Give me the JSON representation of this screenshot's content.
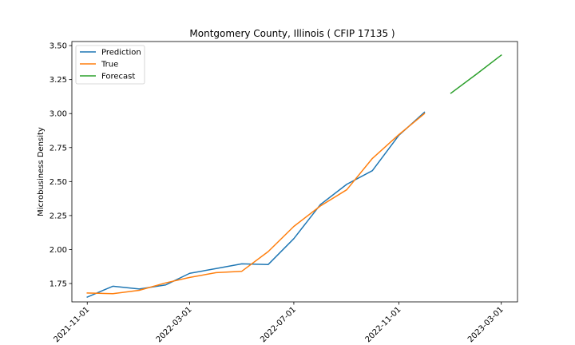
{
  "chart_data": {
    "type": "line",
    "title": "Montgomery County, Illinois ( CFIP 17135 )",
    "xlabel": "",
    "ylabel": "Microbusiness Density",
    "x_tick_labels": [
      "2021-11-01",
      "2022-03-01",
      "2022-07-01",
      "2022-11-01",
      "2023-03-01"
    ],
    "y_tick_labels": [
      "1.75",
      "2.00",
      "2.25",
      "2.50",
      "2.75",
      "3.00",
      "3.25",
      "3.50"
    ],
    "y_ticks": [
      1.75,
      2.0,
      2.25,
      2.5,
      2.75,
      3.0,
      3.25,
      3.5
    ],
    "ylim": [
      1.615,
      3.53
    ],
    "xlim": [
      "2021-10-14",
      "2023-03-20"
    ],
    "legend_position": "top-left",
    "grid": false,
    "series": [
      {
        "name": "Prediction",
        "color": "#1f77b4",
        "x": [
          "2021-11-01",
          "2021-12-01",
          "2022-01-01",
          "2022-02-01",
          "2022-03-01",
          "2022-04-01",
          "2022-05-01",
          "2022-06-01",
          "2022-07-01",
          "2022-08-01",
          "2022-09-01",
          "2022-10-01",
          "2022-11-01",
          "2022-12-01"
        ],
        "y": [
          1.65,
          1.73,
          1.71,
          1.74,
          1.825,
          1.86,
          1.895,
          1.89,
          2.08,
          2.33,
          2.48,
          2.58,
          2.84,
          3.01
        ]
      },
      {
        "name": "True",
        "color": "#ff7f0e",
        "x": [
          "2021-11-01",
          "2021-12-01",
          "2022-01-01",
          "2022-02-01",
          "2022-03-01",
          "2022-04-01",
          "2022-05-01",
          "2022-06-01",
          "2022-07-01",
          "2022-08-01",
          "2022-09-01",
          "2022-10-01",
          "2022-11-01",
          "2022-12-01"
        ],
        "y": [
          1.68,
          1.675,
          1.7,
          1.755,
          1.795,
          1.83,
          1.84,
          1.985,
          2.17,
          2.32,
          2.44,
          2.67,
          2.845,
          3.0
        ]
      },
      {
        "name": "Forecast",
        "color": "#2ca02c",
        "x": [
          "2023-01-01",
          "2023-02-01",
          "2023-03-01"
        ],
        "y": [
          3.15,
          3.295,
          3.43
        ]
      }
    ]
  }
}
